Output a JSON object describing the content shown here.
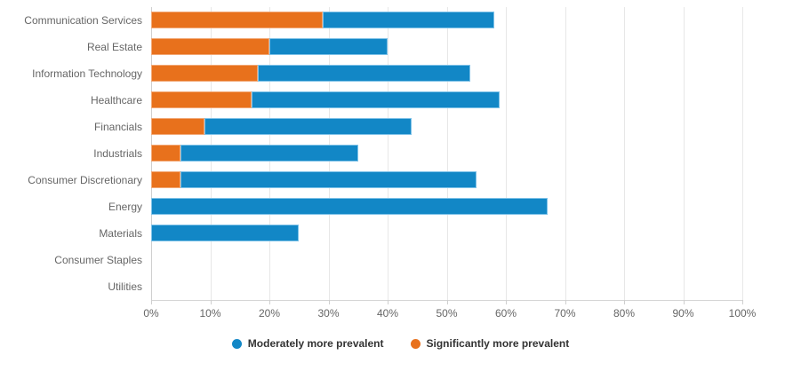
{
  "chart_data": {
    "type": "bar",
    "orientation": "horizontal",
    "stacked": true,
    "title": "",
    "xlabel": "",
    "ylabel": "",
    "xlim": [
      0,
      100
    ],
    "grid": true,
    "legend_position": "bottom",
    "x_tick_labels": [
      "0%",
      "10%",
      "20%",
      "30%",
      "40%",
      "50%",
      "60%",
      "70%",
      "80%",
      "90%",
      "100%"
    ],
    "categories": [
      "Communication Services",
      "Real Estate",
      "Information Technology",
      "Healthcare",
      "Financials",
      "Industrials",
      "Consumer Discretionary",
      "Energy",
      "Materials",
      "Consumer Staples",
      "Utilities"
    ],
    "series": [
      {
        "id": "significantly-more-prevalent",
        "name": "Significantly more prevalent",
        "color": "#e8711c",
        "border_color": "#f2a876",
        "values": [
          29,
          20,
          18,
          17,
          9,
          5,
          5,
          0,
          0,
          0,
          0
        ]
      },
      {
        "id": "moderately-more-prevalent",
        "name": "Moderately more prevalent",
        "color": "#1287c6",
        "border_color": "#7ec2e8",
        "values": [
          29,
          20,
          36,
          42,
          35,
          30,
          50,
          67,
          25,
          0,
          0
        ]
      }
    ],
    "totals": [
      58,
      40,
      54,
      59,
      44,
      35,
      55,
      67,
      25,
      0,
      0
    ],
    "legend": [
      {
        "id": "moderately-more-prevalent",
        "label": "Moderately more prevalent",
        "color": "#1287c6"
      },
      {
        "id": "significantly-more-prevalent",
        "label": "Significantly more prevalent",
        "color": "#e8711c"
      }
    ]
  }
}
